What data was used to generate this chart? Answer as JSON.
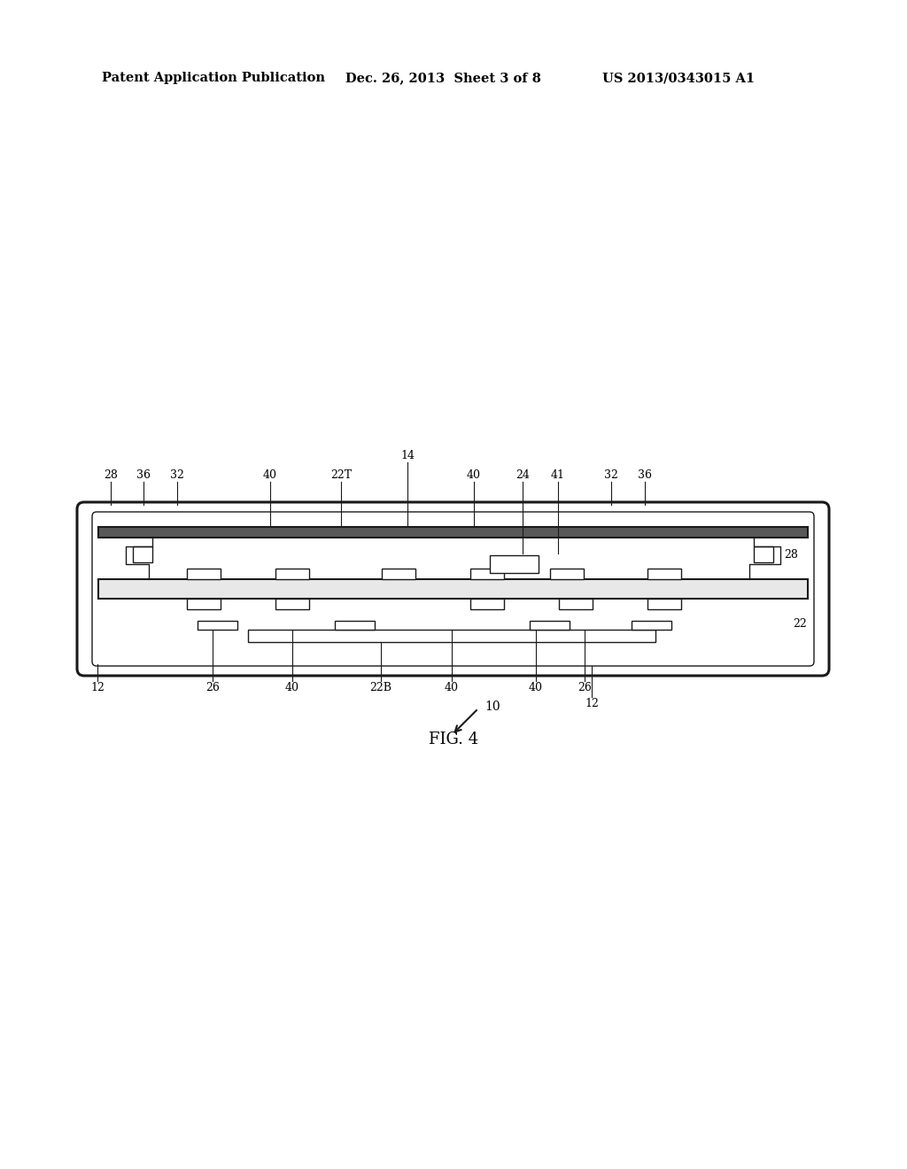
{
  "bg_color": "#ffffff",
  "line_color": "#1a1a1a",
  "header_text": "Patent Application Publication",
  "header_date": "Dec. 26, 2013  Sheet 3 of 8",
  "header_patent": "US 2013/0343015 A1",
  "fig_label": "FIG. 4",
  "title_fontsize": 10.5,
  "label_fontsize": 9,
  "fig_label_fontsize": 13
}
